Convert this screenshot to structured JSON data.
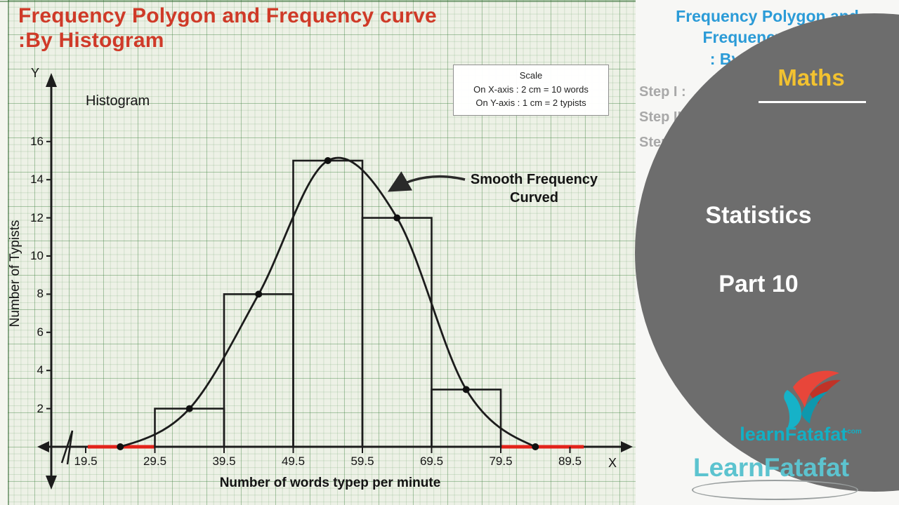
{
  "main_title": {
    "line1": "Frequency Polygon and Frequency curve",
    "line2": ":By Histogram"
  },
  "graph": {
    "histogram_label": "Histogram",
    "axis_letters": {
      "x": "X",
      "y": "Y"
    },
    "scale_box": {
      "title": "Scale",
      "x_line": "On X-axis : 2 cm = 10 words",
      "y_line": "On Y-axis : 1 cm = 2 typists"
    },
    "annotation": {
      "line1": "Smooth Frequency",
      "line2": "Curved"
    }
  },
  "chart_data": {
    "type": "bar",
    "subtype": "histogram_with_smooth_frequency_curve",
    "title": "Histogram",
    "xlabel": "Number of words typep per minute",
    "ylabel": "Number of Typists",
    "x_tick_labels": [
      "19.5",
      "29.5",
      "39.5",
      "49.5",
      "59.5",
      "69.5",
      "79.5",
      "89.5"
    ],
    "y_tick_labels": [
      "2",
      "4",
      "6",
      "8",
      "10",
      "12",
      "14",
      "16"
    ],
    "ylim": [
      0,
      17
    ],
    "grid": true,
    "legend": false,
    "bars": [
      {
        "from": 29.5,
        "to": 39.5,
        "value": 2
      },
      {
        "from": 39.5,
        "to": 49.5,
        "value": 8
      },
      {
        "from": 49.5,
        "to": 59.5,
        "value": 15
      },
      {
        "from": 59.5,
        "to": 69.5,
        "value": 12
      },
      {
        "from": 69.5,
        "to": 79.5,
        "value": 3
      }
    ],
    "curve_points": [
      [
        24.5,
        0
      ],
      [
        34.5,
        2
      ],
      [
        44.5,
        8
      ],
      [
        54.5,
        15
      ],
      [
        64.5,
        12
      ],
      [
        74.5,
        3
      ],
      [
        84.5,
        0
      ]
    ],
    "red_axis_segments": [
      [
        19.8,
        29.5
      ],
      [
        79.5,
        91.5
      ]
    ]
  },
  "side_panel": {
    "subject_badge": "Maths",
    "series_title": "Statistics",
    "series_part": "Part 10",
    "bg_title_line1": "Frequency Polygon and",
    "bg_title_line2": "Frequency curve",
    "bg_title_line3": ": By Histogram",
    "steps": [
      "Step I :",
      "Step II :",
      "Step III :"
    ],
    "brand_small": "learnFatafat",
    "brand_small_suffix": "com",
    "brand_bottom": "LearnFatafat"
  },
  "colors": {
    "title_red": "#cf3a28",
    "axis_black": "#1c1c1c",
    "red_segment": "#e2231a",
    "paper_green": "#edf1e6",
    "panel_gray": "#6d6d6d",
    "accent_yellow": "#f2c230",
    "info_blue": "#2b9bd7",
    "brand_teal": "#12b0c5"
  }
}
